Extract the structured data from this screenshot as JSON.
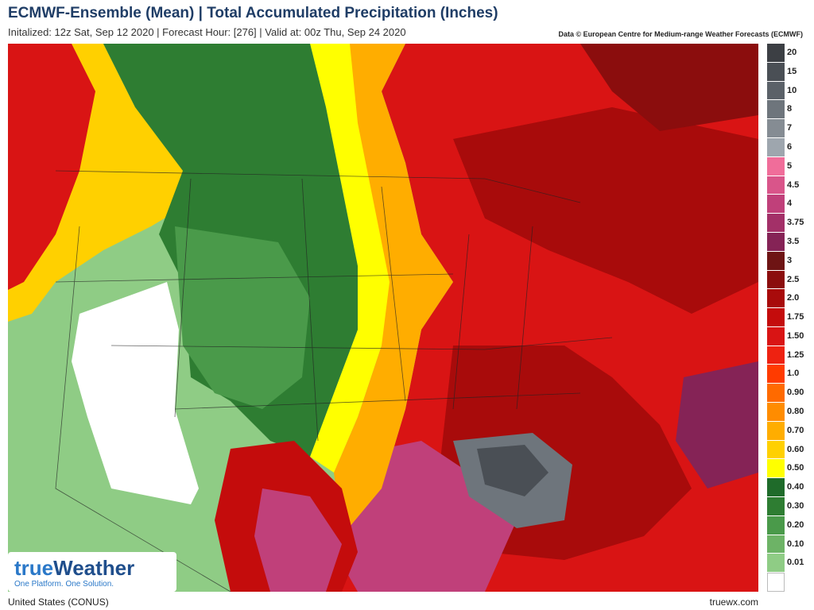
{
  "header": {
    "title": "ECMWF-Ensemble (Mean)  |  Total Accumulated Precipitation (Inches)",
    "subtitle": "Initalized: 12z Sat, Sep 12 2020  |  Forecast Hour: [276]  |  Valid at: 00z Thu, Sep 24 2020",
    "credit": "Data © European Centre for Medium-range Weather Forecasts (ECMWF)"
  },
  "legend": {
    "items": [
      {
        "label": "20",
        "color": "#3c3f44"
      },
      {
        "label": "15",
        "color": "#4a4f55"
      },
      {
        "label": "10",
        "color": "#5b6168"
      },
      {
        "label": "8",
        "color": "#6e757c"
      },
      {
        "label": "7",
        "color": "#858c93"
      },
      {
        "label": "6",
        "color": "#9ea6ae"
      },
      {
        "label": "5",
        "color": "#f06d9a"
      },
      {
        "label": "4.5",
        "color": "#d9558a"
      },
      {
        "label": "4",
        "color": "#c0407a"
      },
      {
        "label": "3.75",
        "color": "#a33068"
      },
      {
        "label": "3.5",
        "color": "#852356"
      },
      {
        "label": "3",
        "color": "#6e1414"
      },
      {
        "label": "2.5",
        "color": "#8b0d0d"
      },
      {
        "label": "2.0",
        "color": "#a80b0b"
      },
      {
        "label": "1.75",
        "color": "#c40c0c"
      },
      {
        "label": "1.50",
        "color": "#d91414"
      },
      {
        "label": "1.25",
        "color": "#ee2211"
      },
      {
        "label": "1.0",
        "color": "#ff3b00"
      },
      {
        "label": "0.90",
        "color": "#ff6a00"
      },
      {
        "label": "0.80",
        "color": "#ff8c00"
      },
      {
        "label": "0.70",
        "color": "#ffad00"
      },
      {
        "label": "0.60",
        "color": "#ffd000"
      },
      {
        "label": "0.50",
        "color": "#ffff00"
      },
      {
        "label": "0.40",
        "color": "#1f6b2a"
      },
      {
        "label": "0.30",
        "color": "#2e7d32"
      },
      {
        "label": "0.20",
        "color": "#4a9a4a"
      },
      {
        "label": "0.10",
        "color": "#6db366"
      },
      {
        "label": "0.01",
        "color": "#8fcc85"
      },
      {
        "label": "",
        "color": "#ffffff"
      }
    ]
  },
  "logo": {
    "word_a": "true",
    "word_b": "Weather",
    "tagline": "One Platform. One Solution."
  },
  "footer": {
    "region": "United States (CONUS)",
    "site": "truewx.com"
  }
}
